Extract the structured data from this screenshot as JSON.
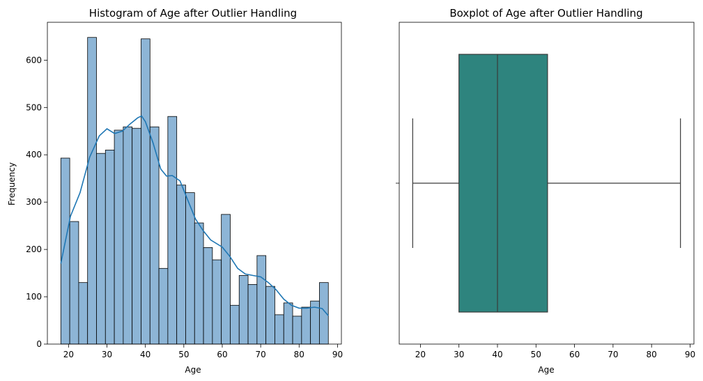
{
  "chart_data": [
    {
      "type": "bar",
      "subtype": "histogram",
      "title": "Histogram of Age after Outlier Handling",
      "xlabel": "Age",
      "ylabel": "Frequency",
      "xlim": [
        14.5,
        91.0
      ],
      "ylim": [
        0,
        680
      ],
      "xticks": [
        20,
        30,
        40,
        50,
        60,
        70,
        80,
        90
      ],
      "yticks": [
        0,
        100,
        200,
        300,
        400,
        500,
        600
      ],
      "bin_edges": [
        18.0,
        20.32,
        22.64,
        24.96,
        27.28,
        29.6,
        31.92,
        34.24,
        36.56,
        38.88,
        41.2,
        43.52,
        45.84,
        48.16,
        50.48,
        52.8,
        55.12,
        57.44,
        59.76,
        62.08,
        64.4,
        66.72,
        69.04,
        71.36,
        73.68,
        76.0,
        78.32,
        80.64,
        82.96,
        85.28,
        87.6
      ],
      "counts": [
        393,
        259,
        130,
        648,
        403,
        410,
        452,
        459,
        456,
        645,
        459,
        160,
        481,
        336,
        320,
        256,
        204,
        178,
        274,
        82,
        145,
        126,
        187,
        122,
        62,
        87,
        59,
        78,
        91,
        130
      ],
      "kde": {
        "x": [
          18.0,
          20.5,
          23.0,
          25.5,
          28.0,
          30.0,
          32.0,
          34.0,
          36.0,
          38.0,
          39.0,
          40.0,
          42.0,
          44.0,
          45.5,
          47.0,
          49.0,
          51.0,
          53.0,
          55.0,
          57.0,
          60.0,
          62.0,
          64.0,
          66.0,
          68.0,
          70.0,
          72.0,
          74.0,
          76.0,
          78.0,
          80.0,
          82.0,
          84.0,
          86.0,
          87.6
        ],
        "y": [
          170,
          270,
          320,
          395,
          440,
          455,
          445,
          450,
          465,
          478,
          482,
          470,
          425,
          370,
          355,
          356,
          345,
          305,
          265,
          240,
          220,
          205,
          185,
          160,
          148,
          145,
          142,
          130,
          115,
          95,
          82,
          76,
          76,
          78,
          75,
          60
        ]
      },
      "colors": {
        "bar": "#8db5d6",
        "bar_edge": "#000000",
        "kde": "#1f77b4"
      }
    },
    {
      "type": "boxplot",
      "title": "Boxplot of Age after Outlier Handling",
      "xlabel": "Age",
      "xlim": [
        14.5,
        91.0
      ],
      "xticks": [
        20,
        30,
        40,
        50,
        60,
        70,
        80,
        90
      ],
      "stats": {
        "whisker_low": 18.0,
        "q1": 30.0,
        "median": 40.0,
        "q3": 53.0,
        "whisker_high": 87.5
      },
      "colors": {
        "box": "#2e847e",
        "line": "#3a3a3a"
      }
    }
  ]
}
